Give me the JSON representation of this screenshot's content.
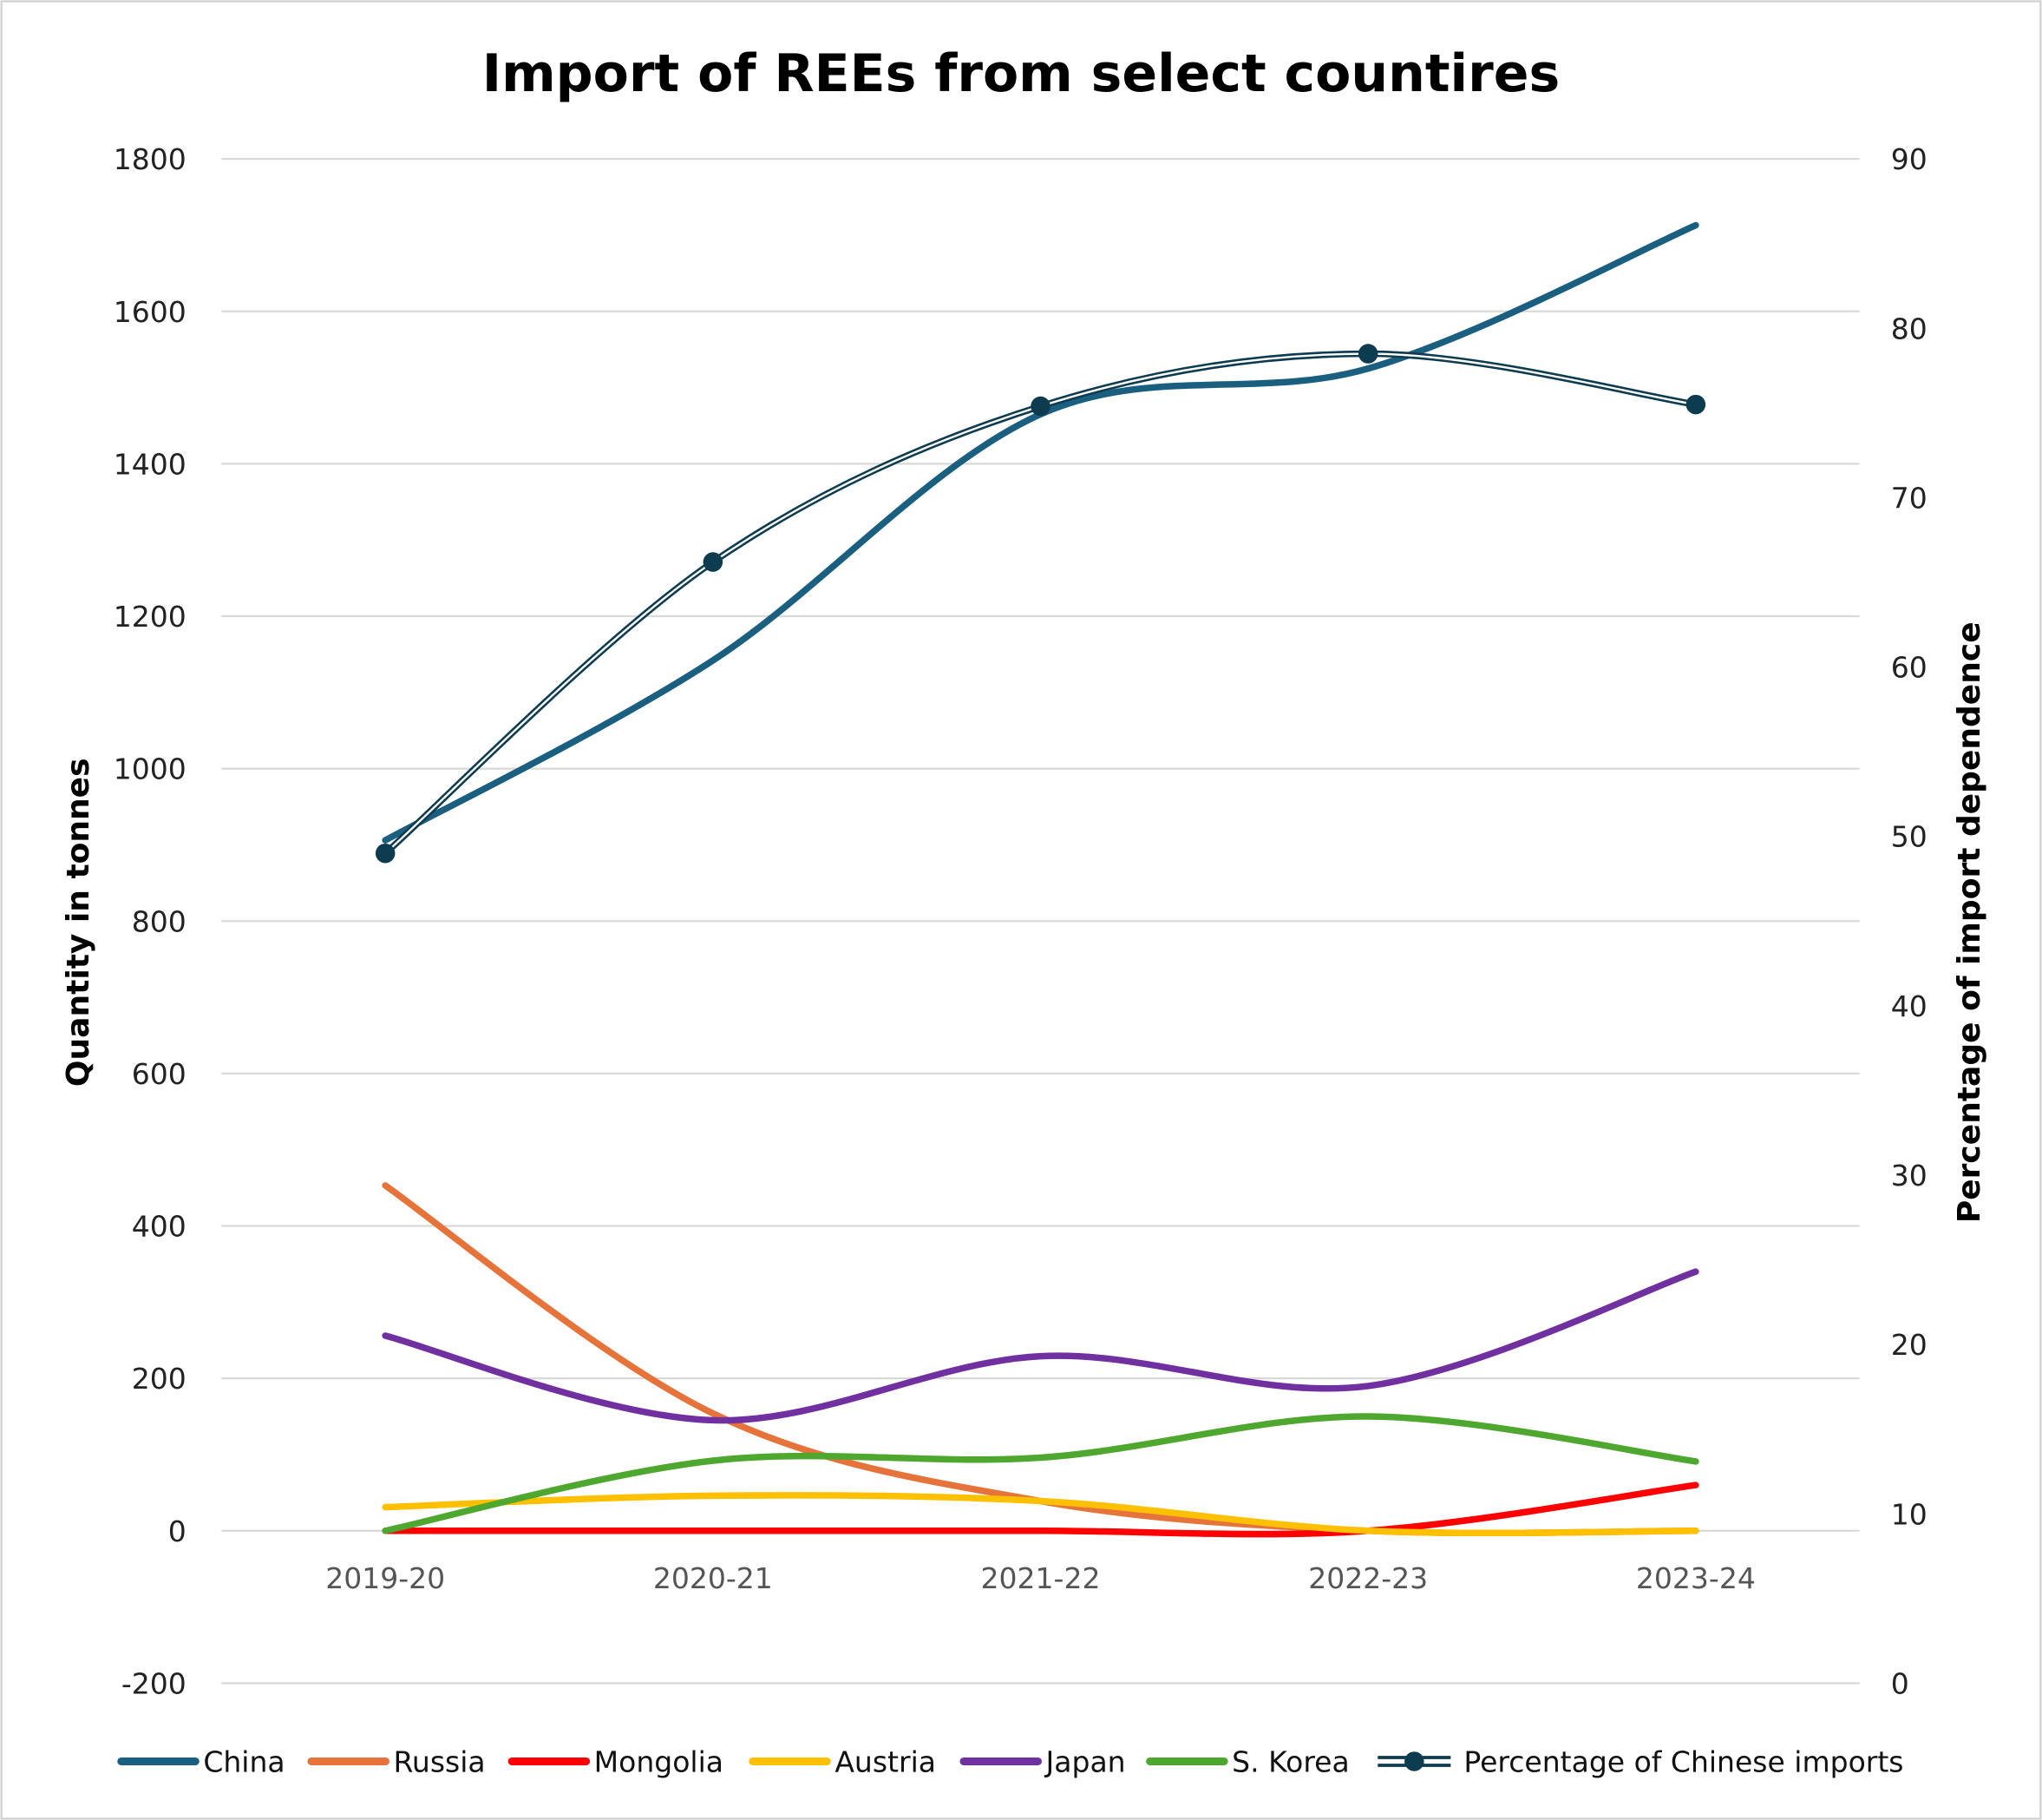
{
  "chart_data": {
    "type": "line",
    "title": "Import of REEs from select countires",
    "xlabel": "",
    "ylabel": "Quantity in tonnes",
    "y2label": "Percentage of import dependence",
    "categories": [
      "2019-20",
      "2020-21",
      "2021-22",
      "2022-23",
      "2023-24"
    ],
    "ylim": [
      -200,
      1800
    ],
    "yticks": [
      -200,
      0,
      200,
      400,
      600,
      800,
      1000,
      1200,
      1400,
      1600,
      1800
    ],
    "y2lim": [
      0,
      90
    ],
    "y2ticks": [
      0,
      10,
      20,
      30,
      40,
      50,
      60,
      70,
      80,
      90
    ],
    "grid": true,
    "legend_position": "bottom",
    "series": [
      {
        "name": "China",
        "axis": "left",
        "color": "#1a5f80",
        "values": [
          906,
          1142,
          1465,
          1525,
          1713
        ]
      },
      {
        "name": "Russia",
        "axis": "left",
        "color": "#e5733a",
        "values": [
          453,
          154,
          39,
          0,
          0
        ]
      },
      {
        "name": "Mongolia",
        "axis": "left",
        "color": "#ff0000",
        "values": [
          0,
          0,
          0,
          0,
          60
        ]
      },
      {
        "name": "Austria",
        "axis": "left",
        "color": "#ffc000",
        "values": [
          31,
          46,
          39,
          0,
          0
        ]
      },
      {
        "name": "Japan",
        "axis": "left",
        "color": "#7030a0",
        "values": [
          256,
          145,
          229,
          190,
          340
        ]
      },
      {
        "name": "S. Korea",
        "axis": "left",
        "color": "#4ea72e",
        "values": [
          0,
          92,
          96,
          150,
          91
        ]
      },
      {
        "name": "Percentage of Chinese imports",
        "axis": "right",
        "color": "#0d3b4f",
        "values": [
          49.0,
          66.2,
          75.4,
          78.5,
          75.5
        ]
      }
    ]
  }
}
